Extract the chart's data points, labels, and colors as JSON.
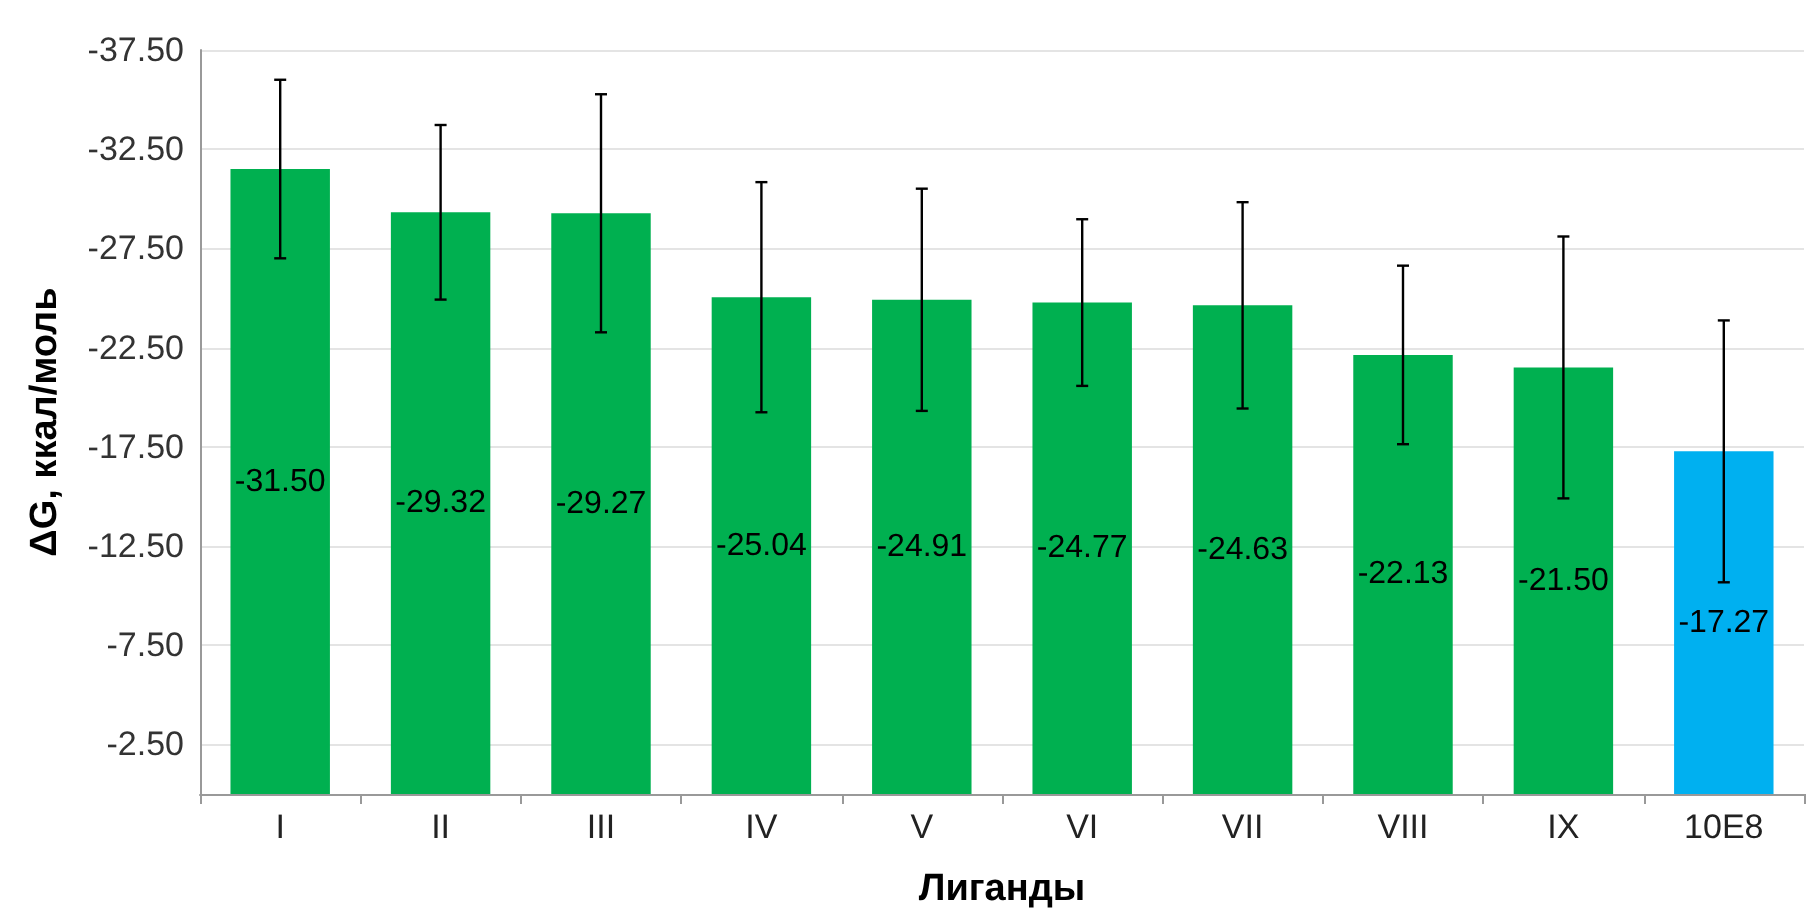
{
  "chart_data": {
    "type": "bar",
    "xlabel": "Лиганды",
    "ylabel": "ΔG, ккал/моль",
    "categories": [
      "I",
      "II",
      "III",
      "IV",
      "V",
      "VI",
      "VII",
      "VIII",
      "IX",
      "10E8"
    ],
    "values": [
      -31.5,
      -29.32,
      -29.27,
      -25.04,
      -24.91,
      -24.77,
      -24.63,
      -22.13,
      -21.5,
      -17.27
    ],
    "value_labels": [
      "-31.50",
      "-29.32",
      "-29.27",
      "-25.04",
      "-24.91",
      "-24.77",
      "-24.63",
      "-22.13",
      "-21.50",
      "-17.27"
    ],
    "colors": [
      "#00b050",
      "#00b050",
      "#00b050",
      "#00b050",
      "#00b050",
      "#00b050",
      "#00b050",
      "#00b050",
      "#00b050",
      "#00b0f0"
    ],
    "errors": [
      4.5,
      4.4,
      6.0,
      5.8,
      5.6,
      4.2,
      5.2,
      4.5,
      6.6,
      6.6
    ],
    "ylim": [
      0,
      -37.5
    ],
    "yticks": [
      {
        "value": -2.5,
        "label": "-2.50"
      },
      {
        "value": -7.5,
        "label": "-7.50"
      },
      {
        "value": -12.5,
        "label": "-12.50"
      },
      {
        "value": -17.5,
        "label": "-17.50"
      },
      {
        "value": -22.5,
        "label": "-22.50"
      },
      {
        "value": -27.5,
        "label": "-27.50"
      },
      {
        "value": -32.5,
        "label": "-32.50"
      },
      {
        "value": -37.5,
        "label": "-37.50"
      }
    ],
    "grid": "y"
  }
}
